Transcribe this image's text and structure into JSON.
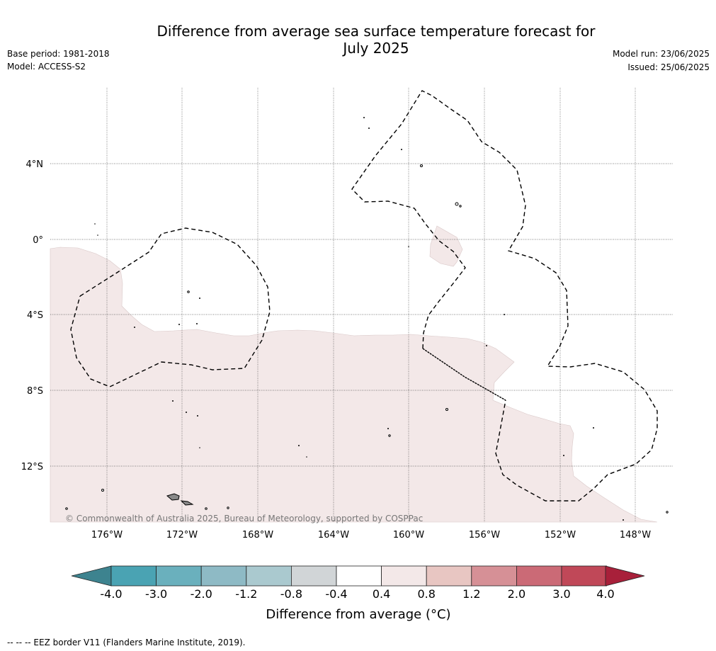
{
  "header": {
    "title_line1": "Difference from average sea surface temperature forecast for",
    "title_line2": "July 2025",
    "base_period": "Base period: 1981-2018",
    "model": "Model: ACCESS-S2",
    "model_run": "Model run: 23/06/2025",
    "issued": "Issued: 25/06/2025"
  },
  "map": {
    "lat_ticks": [
      "4°N",
      "0°",
      "4°S",
      "8°S",
      "12°S"
    ],
    "lon_ticks": [
      "176°W",
      "172°W",
      "168°W",
      "164°W",
      "160°W",
      "156°W",
      "152°W",
      "148°W"
    ],
    "credit": "© Commonwealth of Australia 2025, Bureau of Meteorology, supported by COSPPac",
    "field_color": "#f3e8e8",
    "eez_color": "#000000"
  },
  "colorbar": {
    "labels": [
      "-4.0",
      "-3.0",
      "-2.0",
      "-1.2",
      "-0.8",
      "-0.4",
      "0.4",
      "0.8",
      "1.2",
      "2.0",
      "3.0",
      "4.0"
    ],
    "colors": [
      "#3d838f",
      "#4aa3b3",
      "#6ab0bd",
      "#8ebac5",
      "#aac9cf",
      "#d1d5d7",
      "#ffffff",
      "#f3e8e8",
      "#e8c6c2",
      "#d69096",
      "#cb6a76",
      "#c04858",
      "#a8203a"
    ],
    "title": "Difference from average (°C)"
  },
  "footnote": "-- -- -- EEZ border V11 (Flanders Marine Institute, 2019)."
}
